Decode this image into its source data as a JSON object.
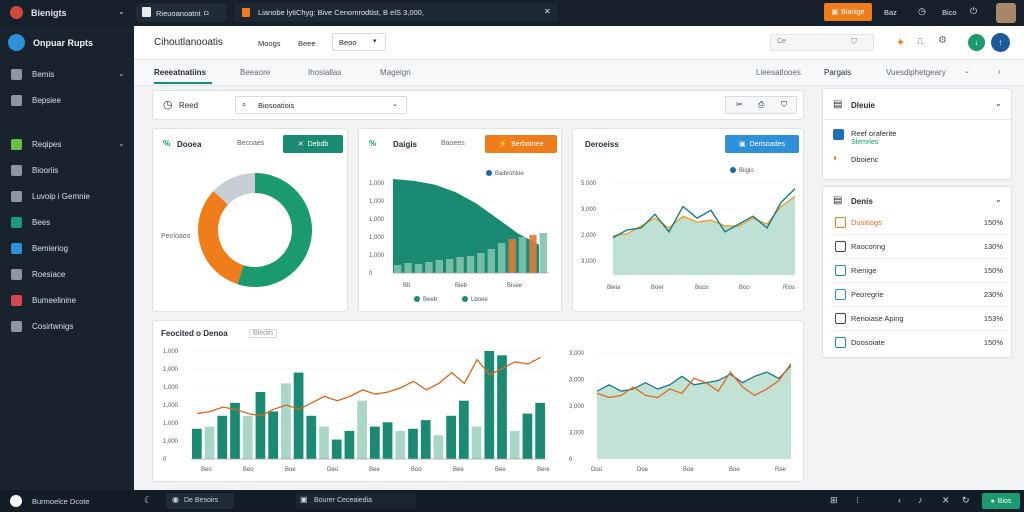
{
  "colors": {
    "accent_green": "#1a8a72",
    "accent_orange": "#f07d1c",
    "accent_blue": "#2f8fd8",
    "dark": "#15202b",
    "light_green": "#a8d5c6"
  },
  "topbar": {
    "app_title": "Bienigts",
    "tab1_label": "Rieuoanoatnt ㅁ",
    "tab2_label": "Lianobe lytiChyg: Bive Cenomrodtist, B elS 3,000,",
    "orange_btn_label": "Bianige",
    "link1": "Baz",
    "link2": "Bico"
  },
  "sidebar": {
    "brand": "Onpuar Rupts",
    "items": [
      {
        "label": "Bemis",
        "icon": "grid-icon",
        "color": "#8b97a3",
        "chevron": true
      },
      {
        "label": "Bepsiee",
        "icon": "document-icon",
        "color": "#8b97a3",
        "chevron": false
      },
      {
        "label": "Reqipes",
        "icon": "recipe-icon",
        "color": "#6cbf45",
        "chevron": true
      },
      {
        "label": "Biooriis",
        "icon": "book-icon",
        "color": "#8b97a3",
        "chevron": false
      },
      {
        "label": "Luvoip i Gemnie",
        "icon": "shield-icon",
        "color": "#8b97a3",
        "chevron": false
      },
      {
        "label": "Bees",
        "icon": "chat-icon",
        "color": "#1a9a7a",
        "chevron": false
      },
      {
        "label": "Bemieriog",
        "icon": "circle-icon",
        "color": "#2f8fd8",
        "chevron": false
      },
      {
        "label": "Roesiace",
        "icon": "wrench-icon",
        "color": "#8b97a3",
        "chevron": false
      },
      {
        "label": "Bumeelinine",
        "icon": "alert-icon",
        "color": "#d64550",
        "chevron": false
      },
      {
        "label": "Cosirtwnigs",
        "icon": "cloud-icon",
        "color": "#8b97a3",
        "chevron": false
      }
    ]
  },
  "header": {
    "title": "Cihoutlanooatis",
    "menu1": "Moogs",
    "menu2": "Beee",
    "dropdown_value": "Beoo",
    "search_placeholder": "Ce"
  },
  "tabs": [
    "Reeeatnatiins",
    "Beeaore",
    "Ihosiallas",
    "Mageign"
  ],
  "tabs_right": [
    "Lieesatlooes",
    "Pargais",
    "Vuesdiphetgeary"
  ],
  "filter": {
    "label": "Reed",
    "search_value": "Biosoatiois"
  },
  "donut_card": {
    "title": "Dooea",
    "tag": "%",
    "link": "Becoaes",
    "btn": "Debdb",
    "center_label": "Peoloaos",
    "chart_data": {
      "type": "pie",
      "values": [
        55,
        32,
        13
      ],
      "colors": [
        "#1a9a6e",
        "#f07d1c",
        "#c8cfd4"
      ]
    }
  },
  "area_card": {
    "title": "Daigis",
    "tag": "%",
    "link": "Baoees",
    "btn": "Berbatnee",
    "legend1": "Baibrohloe",
    "xlabels": [
      "Bb",
      "Bieb",
      "Bisee"
    ],
    "legend_a": "Beeb",
    "legend_b": "Lboee",
    "chart_data": {
      "type": "area",
      "ylabels": [
        "1,000",
        "1,000",
        "1,000",
        "1,000",
        "1,000",
        "0"
      ],
      "curve": [
        100,
        98,
        94,
        86,
        74,
        58,
        42,
        30
      ],
      "bars": [
        8,
        10,
        9,
        11,
        13,
        14,
        16,
        17,
        20,
        24,
        30,
        34,
        36,
        38,
        40
      ]
    }
  },
  "line_card": {
    "title": "Deroeiss",
    "btn": "Derisoades",
    "legend": "Biiglo",
    "xlabels": [
      "Bleia",
      "Boer",
      "Boos",
      "Boo",
      "Rios"
    ],
    "chart_data": {
      "type": "line",
      "ylabels": [
        "5,000",
        "3,000",
        "2,000",
        "3,000"
      ],
      "series": [
        {
          "color": "#1a7a8a",
          "values": [
            38,
            46,
            48,
            62,
            44,
            70,
            58,
            66,
            44,
            52,
            60,
            48,
            74,
            88
          ]
        },
        {
          "color": "#f0a030",
          "values": [
            40,
            42,
            50,
            58,
            48,
            60,
            54,
            56,
            50,
            50,
            58,
            52,
            70,
            80
          ]
        }
      ]
    }
  },
  "bottom_left_card": {
    "title": "Feocited o Denoa",
    "badge": "Bleoth",
    "xlabels": [
      "Beo",
      "Beo",
      "Boe",
      "Deo",
      "Bee",
      "Boo",
      "Bee",
      "Bee",
      "Bere"
    ],
    "chart_data": {
      "type": "bar",
      "ylabels": [
        "1,000",
        "1,000",
        "1,000",
        "1,000",
        "1,000",
        "1,000",
        "0"
      ],
      "bars": [
        28,
        30,
        40,
        52,
        40,
        62,
        44,
        70,
        80,
        40,
        30,
        18,
        26,
        54,
        30,
        34,
        26,
        28,
        36,
        22,
        40,
        54,
        30,
        100,
        96,
        26,
        42,
        52
      ],
      "line": [
        42,
        44,
        48,
        46,
        42,
        40,
        46,
        50,
        46,
        52,
        58,
        54,
        58,
        64,
        60,
        62,
        66,
        72,
        64,
        70,
        80,
        70,
        92,
        78,
        84,
        90,
        88,
        94
      ]
    }
  },
  "bottom_right_card": {
    "xlabels": [
      "Doo",
      "Doe",
      "Boe",
      "Boe",
      "Ree"
    ],
    "chart_data": {
      "type": "line",
      "ylabels": [
        "3,000",
        "3,000",
        "3,000",
        "3,000",
        "0"
      ],
      "series": [
        {
          "color": "#1a7a8a",
          "values": [
            64,
            70,
            64,
            66,
            72,
            66,
            70,
            78,
            70,
            72,
            74,
            80,
            72,
            78,
            82,
            76,
            88
          ]
        },
        {
          "color": "#e06a20",
          "values": [
            62,
            58,
            60,
            68,
            60,
            58,
            66,
            62,
            76,
            72,
            64,
            82,
            68,
            60,
            66,
            74,
            90
          ]
        }
      ]
    }
  },
  "right_panel": {
    "card1": {
      "title": "Dleuie",
      "item1": "Reef oraferite",
      "item1_sub": "Slemrles",
      "item2": "Dboienc"
    },
    "card2": {
      "title": "Denis",
      "rows": [
        {
          "name": "Dusitiogs",
          "pct": "150%",
          "color": "#f07d1c"
        },
        {
          "name": "Raocoring",
          "pct": "130%",
          "color": "#3a4651"
        },
        {
          "name": "Rienige",
          "pct": "150%",
          "color": "#1a9a6e"
        },
        {
          "name": "Peoregrie",
          "pct": "230%",
          "color": "#2f8fd8"
        },
        {
          "name": "Renoiase Aping",
          "pct": "153%",
          "color": "#3a4651"
        },
        {
          "name": "Doosoiate",
          "pct": "150%",
          "color": "#1a9a6e"
        }
      ]
    }
  },
  "bottombar": {
    "status": "Burmoelce Dcote",
    "item2": "De Besoirs",
    "item3": "Bourer Ceceaiedia",
    "right_btn": "Bios"
  }
}
